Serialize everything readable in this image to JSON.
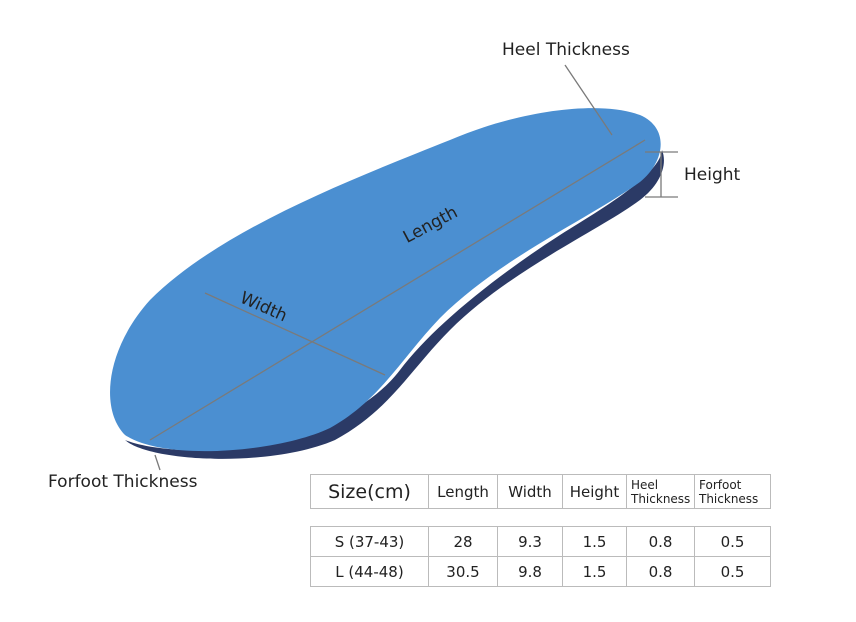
{
  "labels": {
    "heel_thickness": "Heel Thickness",
    "height": "Height",
    "length": "Length",
    "width": "Width",
    "forfoot_thickness": "Forfoot Thickness"
  },
  "colors": {
    "insole": "#4b8fd1",
    "insole_edge": "#2b3a66",
    "dimension_line": "#888888"
  },
  "size_table": {
    "headers": [
      "Size(cm)",
      "Length",
      "Width",
      "Height",
      "Heel Thickness",
      "Forfoot Thickness"
    ],
    "rows": [
      [
        "S (37-43)",
        "28",
        "9.3",
        "1.5",
        "0.8",
        "0.5"
      ],
      [
        "L (44-48)",
        "30.5",
        "9.8",
        "1.5",
        "0.8",
        "0.5"
      ]
    ]
  }
}
